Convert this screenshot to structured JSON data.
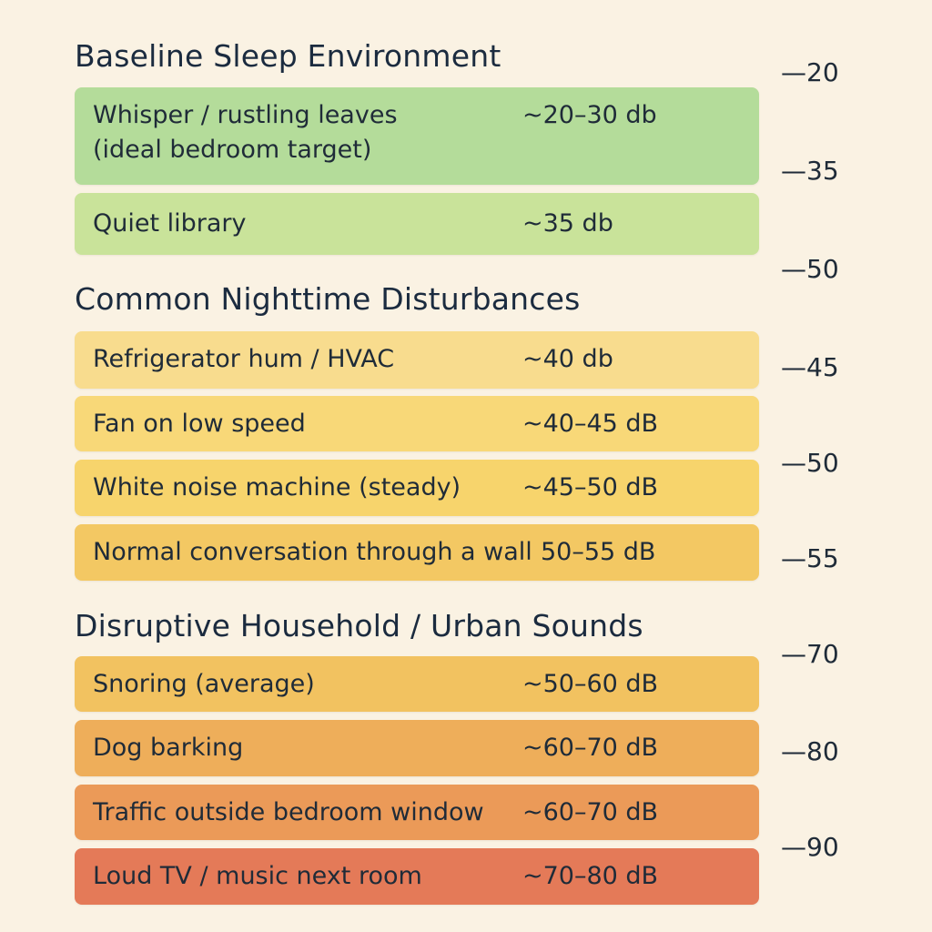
{
  "sections": [
    {
      "title": "Baseline Sleep Environment"
    },
    {
      "title": "Common Nighttime Disturbances"
    },
    {
      "title": "Disruptive Household / Urban Sounds"
    }
  ],
  "bands": [
    {
      "label_lines": [
        "Whisper / rustling leaves",
        "(ideal bedroom target)"
      ],
      "value": "~20–30 db",
      "color": "#b4dc9a"
    },
    {
      "label_lines": [
        "Quiet library"
      ],
      "value": "~35 db",
      "color": "#c9e39a"
    },
    {
      "label_lines": [
        "Refrigerator hum / HVAC"
      ],
      "value": "~40 db",
      "color": "#f8dc8e"
    },
    {
      "label_lines": [
        "Fan on low speed"
      ],
      "value": "~40–45 dB",
      "color": "#f8d878"
    },
    {
      "label_lines": [
        "White noise machine (steady)"
      ],
      "value": "~45–50 dB",
      "color": "#f7d46c"
    },
    {
      "label_lines": [
        "Normal conversation through a wall"
      ],
      "value": "50–55 dB",
      "color": "#f3c863"
    },
    {
      "label_lines": [
        "Snoring (average)"
      ],
      "value": "~50–60 dB",
      "color": "#f2c260"
    },
    {
      "label_lines": [
        "Dog barking"
      ],
      "value": "~60–70 dB",
      "color": "#eeae5a"
    },
    {
      "label_lines": [
        "Traffic outside bedroom window"
      ],
      "value": "~60–70 dB",
      "color": "#eb9a58"
    },
    {
      "label_lines": [
        "Loud TV / music next room"
      ],
      "value": "~70–80 dB",
      "color": "#e47a58"
    }
  ],
  "scale_ticks": [
    "—20",
    "—35",
    "—50",
    "—45",
    "—50",
    "—55",
    "—70",
    "—80",
    "—90"
  ]
}
